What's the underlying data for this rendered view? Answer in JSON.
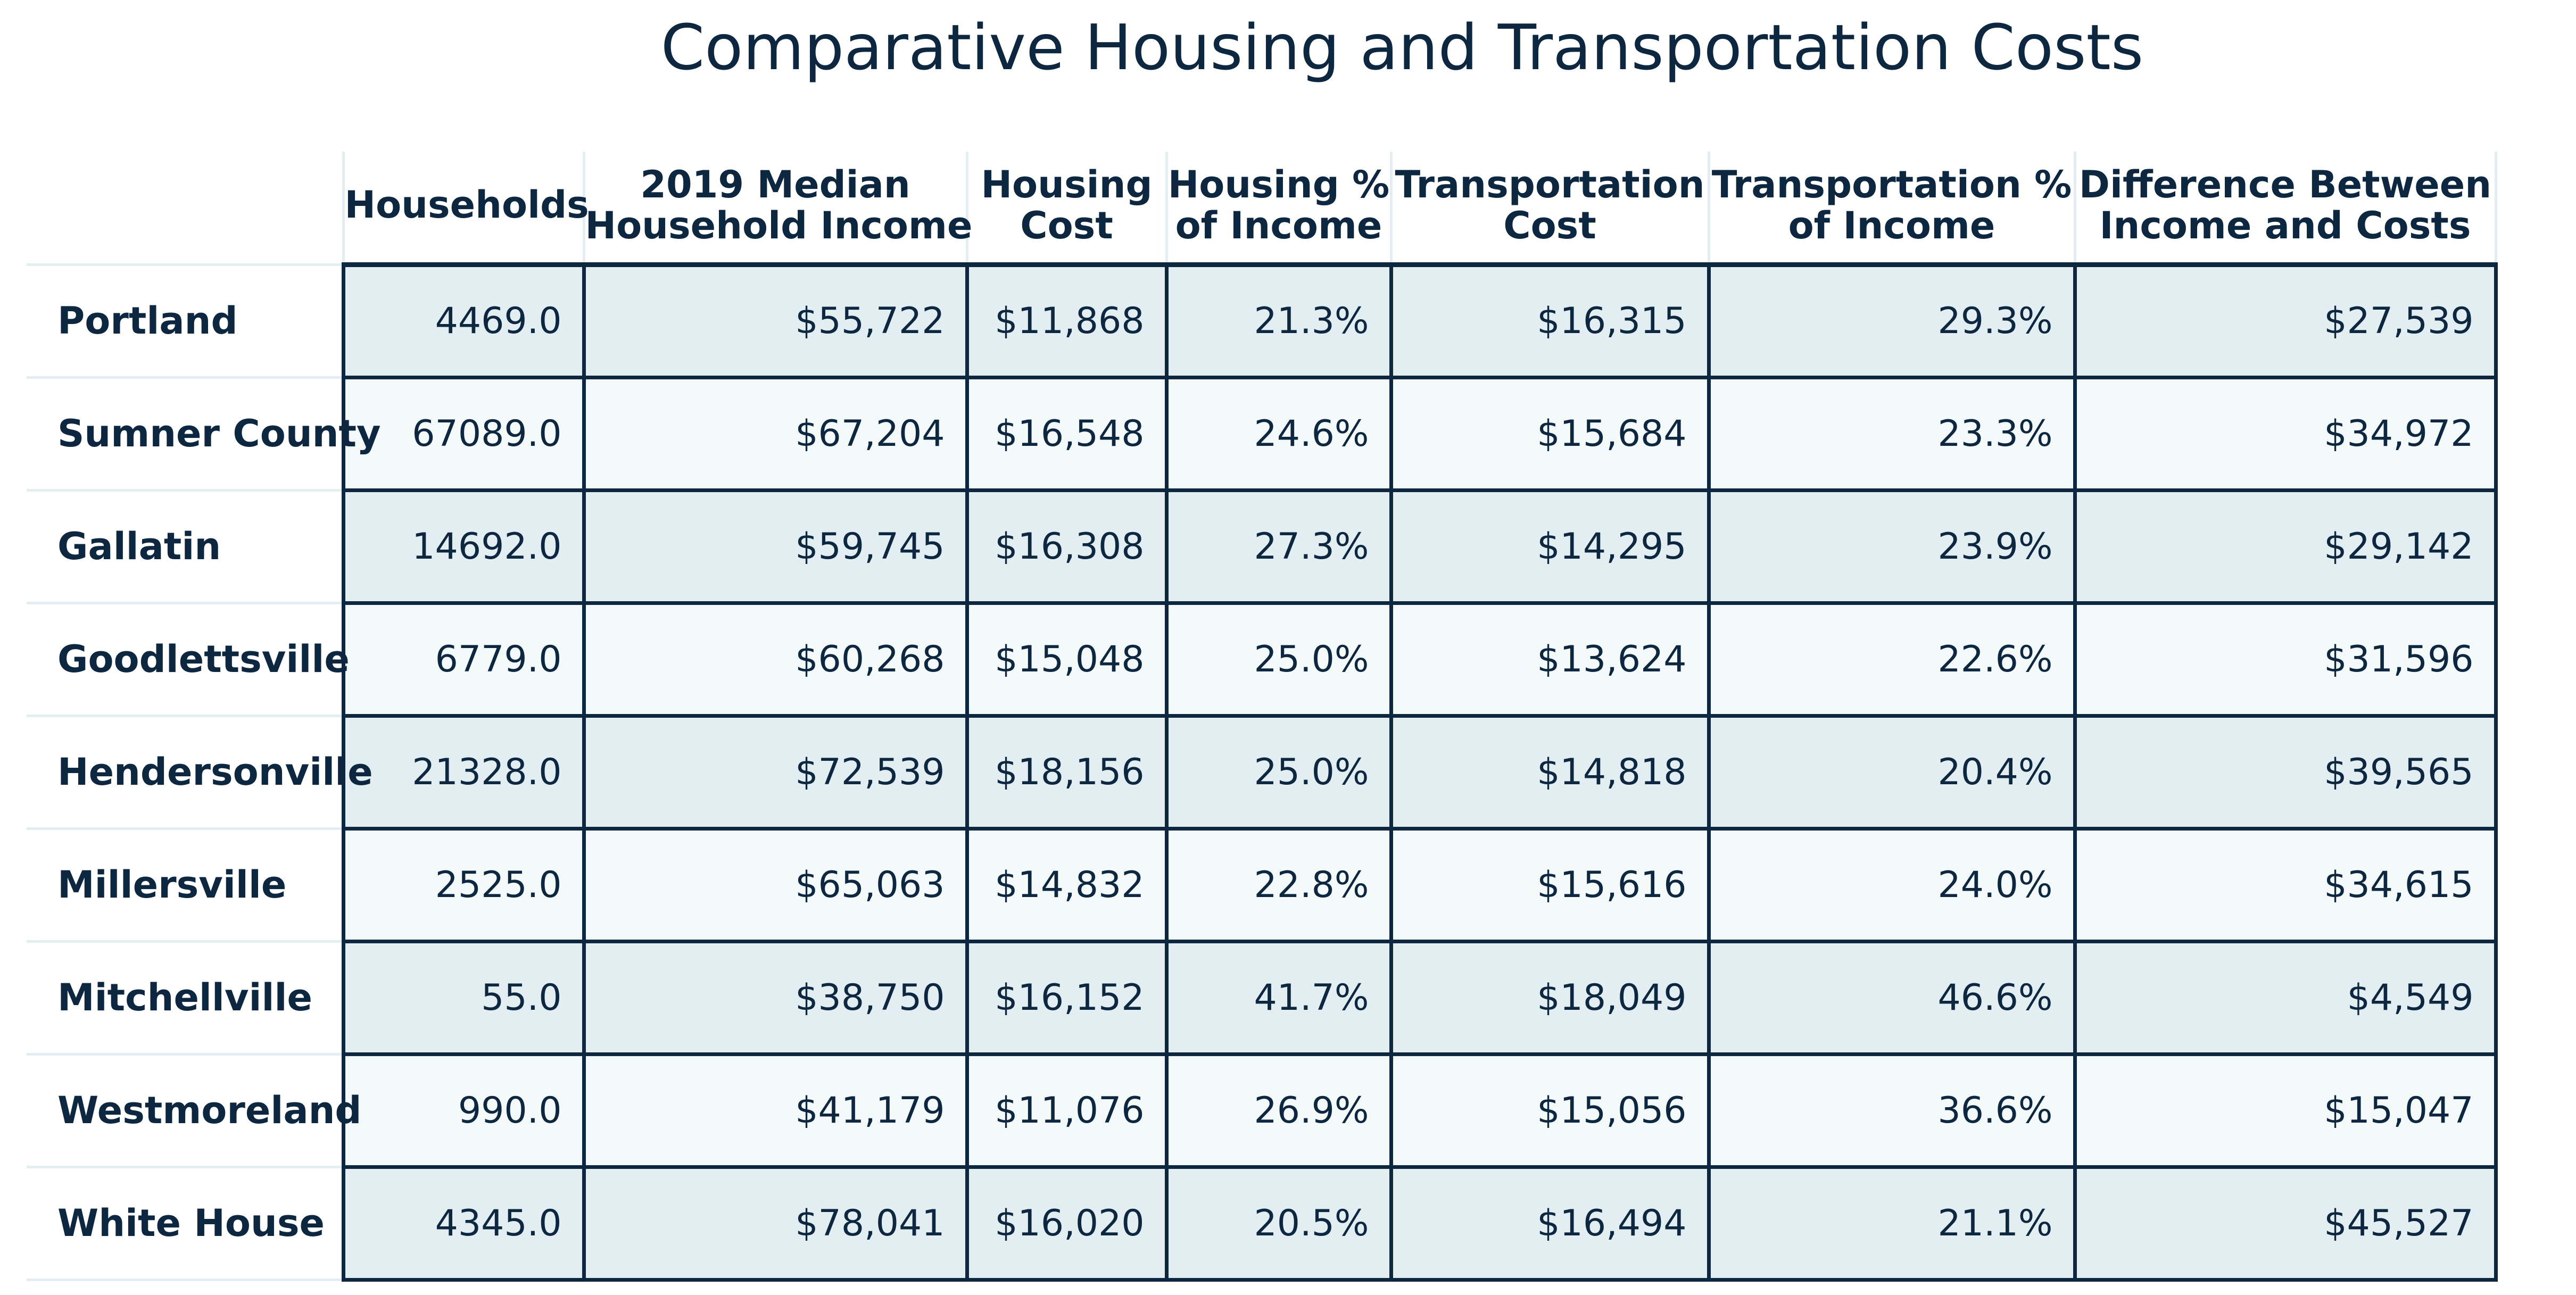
{
  "chart_data": {
    "type": "table",
    "title": "Comparative Housing and Transportation Costs",
    "columns": [
      "",
      "Households",
      "2019 Median Household Income",
      "Housing Cost",
      "Housing % of Income",
      "Transportation Cost",
      "Transportation % of Income",
      "Difference Between Income and Costs"
    ],
    "column_header_lines": [
      [
        ""
      ],
      [
        "Households"
      ],
      [
        "2019 Median",
        "Household Income"
      ],
      [
        "Housing",
        "Cost"
      ],
      [
        "Housing %",
        "of Income"
      ],
      [
        "Transportation",
        "Cost"
      ],
      [
        "Transportation %",
        "of Income"
      ],
      [
        "Difference Between",
        "Income and Costs"
      ]
    ],
    "rows": [
      {
        "label": "Portland",
        "values": [
          "4469.0",
          "$55,722",
          "$11,868",
          "21.3%",
          "$16,315",
          "29.3%",
          "$27,539"
        ]
      },
      {
        "label": "Sumner County",
        "values": [
          "67089.0",
          "$67,204",
          "$16,548",
          "24.6%",
          "$15,684",
          "23.3%",
          "$34,972"
        ]
      },
      {
        "label": "Gallatin",
        "values": [
          "14692.0",
          "$59,745",
          "$16,308",
          "27.3%",
          "$14,295",
          "23.9%",
          "$29,142"
        ]
      },
      {
        "label": "Goodlettsville",
        "values": [
          "6779.0",
          "$60,268",
          "$15,048",
          "25.0%",
          "$13,624",
          "22.6%",
          "$31,596"
        ]
      },
      {
        "label": "Hendersonville",
        "values": [
          "21328.0",
          "$72,539",
          "$18,156",
          "25.0%",
          "$14,818",
          "20.4%",
          "$39,565"
        ]
      },
      {
        "label": "Millersville",
        "values": [
          "2525.0",
          "$65,063",
          "$14,832",
          "22.8%",
          "$15,616",
          "24.0%",
          "$34,615"
        ]
      },
      {
        "label": "Mitchellville",
        "values": [
          "55.0",
          "$38,750",
          "$16,152",
          "41.7%",
          "$18,049",
          "46.6%",
          "$4,549"
        ]
      },
      {
        "label": "Westmoreland",
        "values": [
          "990.0",
          "$41,179",
          "$11,076",
          "26.9%",
          "$15,056",
          "36.6%",
          "$15,047"
        ]
      },
      {
        "label": "White House",
        "values": [
          "4345.0",
          "$78,041",
          "$16,020",
          "20.5%",
          "$16,494",
          "21.1%",
          "$45,527"
        ]
      }
    ],
    "colors": {
      "text": "#0d2740",
      "border": "#0d2740",
      "row_band_dark": "#e2eef1",
      "row_band_light": "#f4f9fa",
      "light_rule": "#e3eef2"
    }
  }
}
